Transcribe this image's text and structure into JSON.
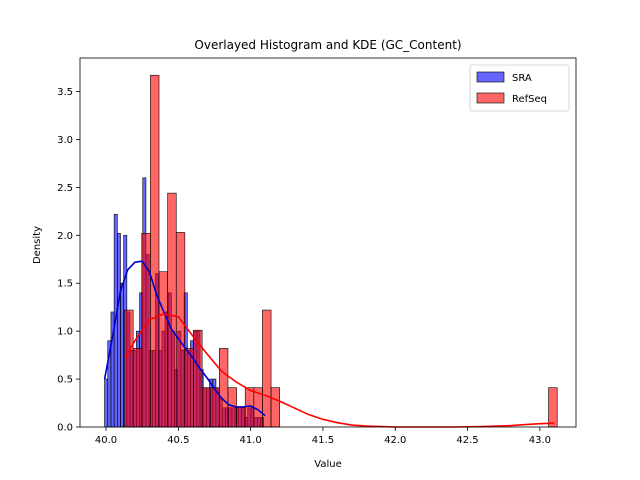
{
  "chart_data": {
    "type": "bar",
    "title": "Overlayed Histogram and KDE (GC_Content)",
    "xlabel": "Value",
    "ylabel": "Density",
    "xlim": [
      39.82,
      43.25
    ],
    "ylim": [
      0,
      3.85
    ],
    "xticks": [
      40.0,
      40.5,
      41.0,
      41.5,
      42.0,
      42.5,
      43.0
    ],
    "xtick_labels": [
      "40.0",
      "40.5",
      "41.0",
      "41.5",
      "42.0",
      "42.5",
      "43.0"
    ],
    "yticks": [
      0.0,
      0.5,
      1.0,
      1.5,
      2.0,
      2.5,
      3.0,
      3.5
    ],
    "ytick_labels": [
      "0.0",
      "0.5",
      "1.0",
      "1.5",
      "2.0",
      "2.5",
      "3.0",
      "3.5"
    ],
    "grid": false,
    "legend_position": "top-right",
    "series": [
      {
        "name": "SRA",
        "color": "#0000ff",
        "kde_color": "#0000cc",
        "bin_edges": [
          39.99,
          40.012,
          40.034,
          40.056,
          40.078,
          40.1,
          40.122,
          40.144,
          40.166,
          40.188,
          40.21,
          40.232,
          40.254,
          40.276,
          40.298,
          40.32,
          40.342,
          40.364,
          40.386,
          40.408,
          40.43,
          40.452,
          40.474,
          40.496,
          40.518,
          40.54,
          40.562,
          40.584,
          40.606,
          40.628,
          40.65,
          40.672,
          40.694,
          40.716,
          40.738,
          40.76,
          40.782,
          40.804,
          40.826,
          40.848,
          40.87,
          40.892,
          40.914,
          40.936,
          40.958,
          40.98,
          41.002,
          41.024,
          41.046,
          41.068,
          41.09
        ],
        "densities": [
          0.5,
          0.9,
          1.2,
          2.22,
          2.02,
          1.5,
          2.0,
          1.2,
          0.8,
          0.8,
          1.0,
          1.4,
          2.6,
          1.8,
          0.8,
          0.8,
          1.6,
          0.8,
          1.0,
          1.2,
          1.4,
          1.0,
          0.6,
          1.0,
          0.8,
          1.4,
          0.8,
          0.9,
          1.0,
          1.0,
          0.6,
          0.4,
          0.4,
          0.5,
          0.5,
          0.4,
          0.3,
          0.2,
          0.2,
          0.2,
          0.2,
          0.2,
          0.2,
          0.2,
          0.1,
          0.2,
          0.2,
          0.1,
          0.1,
          0.1
        ],
        "kde": {
          "x": [
            39.99,
            40.05,
            40.1,
            40.15,
            40.2,
            40.25,
            40.3,
            40.35,
            40.4,
            40.45,
            40.5,
            40.55,
            40.6,
            40.65,
            40.7,
            40.75,
            40.8,
            40.85,
            40.9,
            40.95,
            41.0,
            41.05,
            41.1
          ],
          "y": [
            0.5,
            0.98,
            1.42,
            1.64,
            1.72,
            1.73,
            1.62,
            1.38,
            1.2,
            1.03,
            0.92,
            0.82,
            0.72,
            0.61,
            0.51,
            0.4,
            0.3,
            0.23,
            0.21,
            0.21,
            0.22,
            0.18,
            0.12
          ]
        }
      },
      {
        "name": "RefSeq",
        "color": "#ff0000",
        "kde_color": "#ff0000",
        "bin_edges": [
          40.128,
          40.1876,
          40.2472,
          40.3068,
          40.3664,
          40.426,
          40.4856,
          40.5452,
          40.6048,
          40.6644,
          40.724,
          40.7836,
          40.8432,
          40.9028,
          40.9624,
          41.022,
          41.0816,
          41.1412
        ],
        "densities": [
          1.22,
          0.82,
          2.02,
          3.67,
          1.62,
          2.44,
          2.03,
          0.82,
          1.01,
          0.41,
          0.41,
          0.82,
          0.41,
          0.21,
          0.41,
          0.41,
          1.22
        ],
        "outlier_bins": [
          {
            "edges": [
              41.1412,
              41.2008
            ],
            "density": 0.41
          },
          {
            "edges": [
              43.06,
              43.12
            ],
            "density": 0.41
          }
        ],
        "kde": {
          "x": [
            40.13,
            40.2,
            40.3,
            40.4,
            40.5,
            40.6,
            40.7,
            40.8,
            40.9,
            41.0,
            41.1,
            41.2,
            41.3,
            41.4,
            41.5,
            41.6,
            41.7,
            41.8,
            42.0,
            42.2,
            42.4,
            42.6,
            42.8,
            42.9,
            43.0,
            43.1
          ],
          "y": [
            0.72,
            0.9,
            1.12,
            1.18,
            1.15,
            0.95,
            0.76,
            0.58,
            0.47,
            0.38,
            0.33,
            0.27,
            0.2,
            0.13,
            0.08,
            0.045,
            0.02,
            0.01,
            0.0,
            0.0,
            0.0,
            0.005,
            0.015,
            0.025,
            0.035,
            0.04
          ]
        }
      }
    ]
  }
}
